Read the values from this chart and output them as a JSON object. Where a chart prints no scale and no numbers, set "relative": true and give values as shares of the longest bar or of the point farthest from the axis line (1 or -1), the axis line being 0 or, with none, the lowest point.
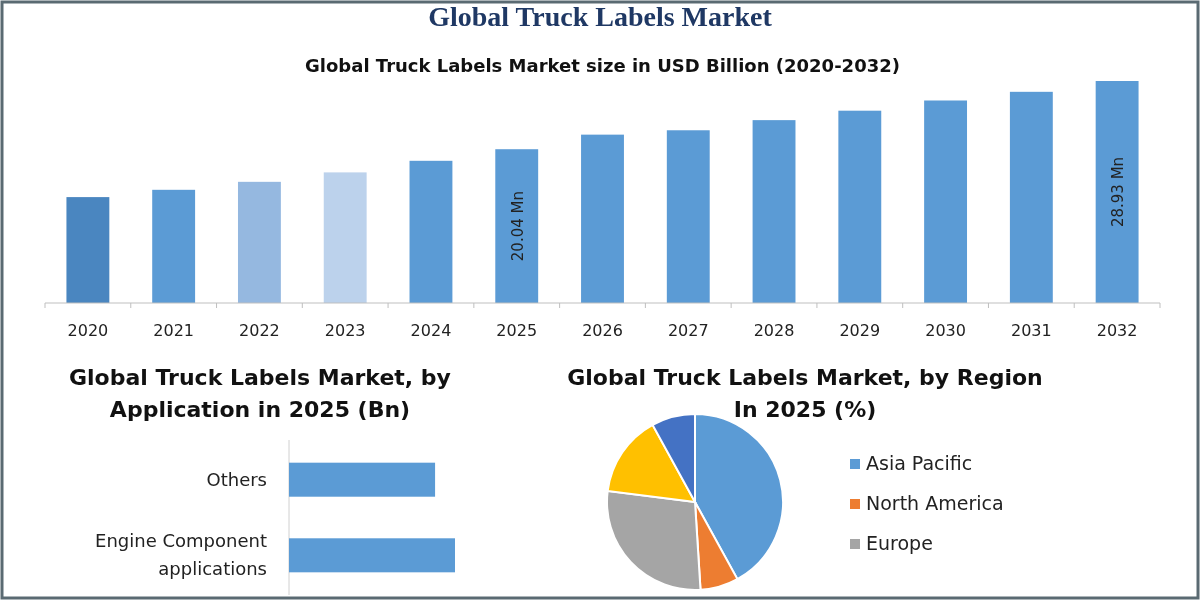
{
  "chart_data": [
    {
      "type": "other",
      "title": "Global Truck Labels Market"
    },
    {
      "type": "bar",
      "title": "Global Truck Labels Market size in USD Billion (2020-2032)",
      "categories": [
        "2020",
        "2021",
        "2022",
        "2023",
        "2024",
        "2025",
        "2026",
        "2027",
        "2028",
        "2029",
        "2030",
        "2031",
        "2032"
      ],
      "values": [
        13.8,
        14.75,
        15.79,
        17.02,
        18.53,
        20.04,
        21.94,
        22.51,
        23.83,
        25.06,
        26.39,
        27.52,
        28.93
      ],
      "colors": [
        "#4a86c0",
        "#5b9bd5",
        "#95b8e0",
        "#bcd2ec",
        "#5b9bd5",
        "#5b9bd5",
        "#5b9bd5",
        "#5b9bd5",
        "#5b9bd5",
        "#5b9bd5",
        "#5b9bd5",
        "#5b9bd5",
        "#5b9bd5"
      ],
      "value_labels": [
        null,
        null,
        null,
        null,
        null,
        "20.04 Mn",
        null,
        null,
        null,
        null,
        null,
        null,
        "28.93 Mn"
      ]
    },
    {
      "type": "bar",
      "orientation": "horizontal",
      "title": "Global Truck Labels Market, by Application in 2025 (Bn)",
      "categories": [
        "Others",
        "Engine Component applications"
      ],
      "values": [
        0.88,
        1
      ],
      "color": "#5b9bd5",
      "relative": true
    },
    {
      "type": "pie",
      "title": "Global Truck Labels Market, by Region In 2025 (%)",
      "categories": [
        "Asia Pacific",
        "North America",
        "Europe",
        null,
        null
      ],
      "values": [
        42,
        7,
        28,
        15,
        8
      ],
      "colors": [
        "#5b9bd5",
        "#ed7d31",
        "#a5a5a5",
        "#ffc000",
        "#4472c4"
      ],
      "legend": "right"
    }
  ]
}
